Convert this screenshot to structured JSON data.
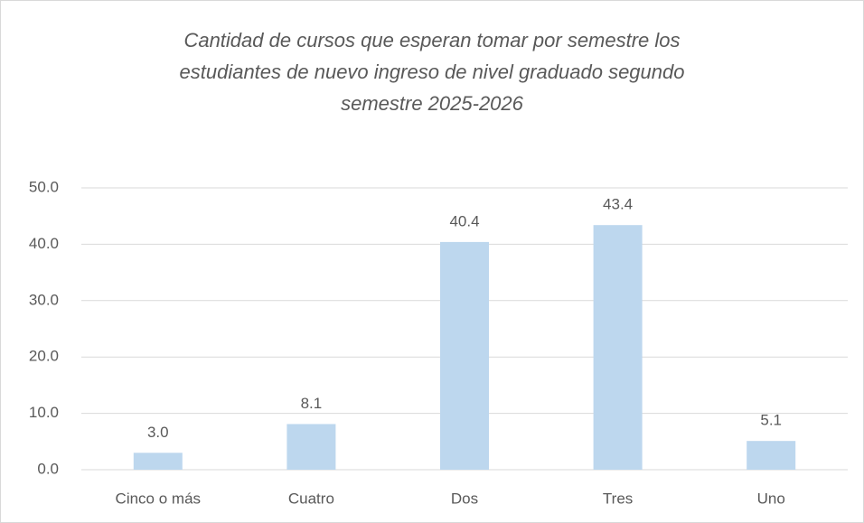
{
  "chart_data": {
    "type": "bar",
    "title": "Cantidad de cursos que esperan tomar por semestre los estudiantes de nuevo ingreso de nivel graduado segundo semestre 2025-2026",
    "categories": [
      "Cinco o más",
      "Cuatro",
      "Dos",
      "Tres",
      "Uno"
    ],
    "values": [
      3.0,
      8.1,
      40.4,
      43.4,
      5.1
    ],
    "value_labels": [
      "3.0",
      "8.1",
      "40.4",
      "43.4",
      "5.1"
    ],
    "color": "#bdd7ee",
    "ylim": [
      0,
      50
    ],
    "yticks": [
      {
        "value": 0,
        "label": "0.0"
      },
      {
        "value": 10,
        "label": "10.0"
      },
      {
        "value": 20,
        "label": "20.0"
      },
      {
        "value": 30,
        "label": "30.0"
      },
      {
        "value": 40,
        "label": "40.0"
      },
      {
        "value": 50,
        "label": "50.0"
      }
    ],
    "grid": true
  }
}
